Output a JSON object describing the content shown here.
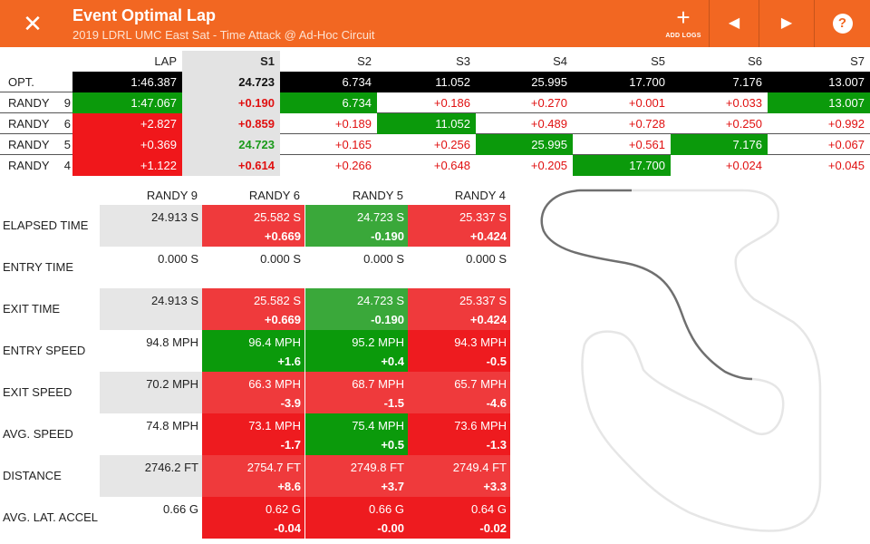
{
  "header": {
    "close_glyph": "✕",
    "title": "Event Optimal Lap",
    "subtitle": "2019 LDRL UMC East Sat - Time Attack @ Ad-Hoc Circuit",
    "add_logs_label": "ADD LOGS",
    "add_glyph": "+",
    "prev_glyph": "◀",
    "next_glyph": "▶",
    "help_glyph": "?",
    "icons": [
      "close-icon",
      "plus-icon",
      "prev-icon",
      "next-icon",
      "help-icon"
    ],
    "accent_color": "#f26722"
  },
  "sectors": {
    "columns": [
      "LAP",
      "S1",
      "S2",
      "S3",
      "S4",
      "S5",
      "S6",
      "S7"
    ],
    "rows": [
      {
        "name": "OPT.",
        "num": "",
        "values": [
          "1:46.387",
          "24.723",
          "6.734",
          "11.052",
          "25.995",
          "17.700",
          "7.176",
          "13.007"
        ]
      },
      {
        "name": "RANDY",
        "num": "9",
        "values": [
          "1:47.067",
          "+0.190",
          "6.734",
          "+0.186",
          "+0.270",
          "+0.001",
          "+0.033",
          "13.007"
        ]
      },
      {
        "name": "RANDY",
        "num": "6",
        "values": [
          "+2.827",
          "+0.859",
          "+0.189",
          "11.052",
          "+0.489",
          "+0.728",
          "+0.250",
          "+0.992"
        ]
      },
      {
        "name": "RANDY",
        "num": "5",
        "values": [
          "+0.369",
          "24.723",
          "+0.165",
          "+0.256",
          "25.995",
          "+0.561",
          "7.176",
          "+0.067"
        ]
      },
      {
        "name": "RANDY",
        "num": "4",
        "values": [
          "+1.122",
          "+0.614",
          "+0.266",
          "+0.648",
          "+0.205",
          "17.700",
          "+0.024",
          "+0.045"
        ]
      }
    ]
  },
  "comparison": {
    "drivers": [
      "RANDY 9",
      "RANDY 6",
      "RANDY 5",
      "RANDY 4"
    ],
    "rows": [
      {
        "label": "ELAPSED TIME",
        "cells": [
          {
            "value": "24.913 S",
            "delta": ""
          },
          {
            "value": "25.582 S",
            "delta": "+0.669"
          },
          {
            "value": "24.723 S",
            "delta": "-0.190"
          },
          {
            "value": "25.337 S",
            "delta": "+0.424"
          }
        ]
      },
      {
        "label": "ENTRY TIME",
        "cells": [
          {
            "value": "0.000 S",
            "delta": ""
          },
          {
            "value": "0.000 S",
            "delta": ""
          },
          {
            "value": "0.000 S",
            "delta": ""
          },
          {
            "value": "0.000 S",
            "delta": ""
          }
        ]
      },
      {
        "label": "EXIT TIME",
        "cells": [
          {
            "value": "24.913 S",
            "delta": ""
          },
          {
            "value": "25.582 S",
            "delta": "+0.669"
          },
          {
            "value": "24.723 S",
            "delta": "-0.190"
          },
          {
            "value": "25.337 S",
            "delta": "+0.424"
          }
        ]
      },
      {
        "label": "ENTRY SPEED",
        "cells": [
          {
            "value": "94.8 MPH",
            "delta": ""
          },
          {
            "value": "96.4 MPH",
            "delta": "+1.6"
          },
          {
            "value": "95.2 MPH",
            "delta": "+0.4"
          },
          {
            "value": "94.3 MPH",
            "delta": "-0.5"
          }
        ]
      },
      {
        "label": "EXIT SPEED",
        "cells": [
          {
            "value": "70.2 MPH",
            "delta": ""
          },
          {
            "value": "66.3 MPH",
            "delta": "-3.9"
          },
          {
            "value": "68.7 MPH",
            "delta": "-1.5"
          },
          {
            "value": "65.7 MPH",
            "delta": "-4.6"
          }
        ]
      },
      {
        "label": "AVG. SPEED",
        "cells": [
          {
            "value": "74.8 MPH",
            "delta": ""
          },
          {
            "value": "73.1 MPH",
            "delta": "-1.7"
          },
          {
            "value": "75.4 MPH",
            "delta": "+0.5"
          },
          {
            "value": "73.6 MPH",
            "delta": "-1.3"
          }
        ]
      },
      {
        "label": "DISTANCE",
        "cells": [
          {
            "value": "2746.2 FT",
            "delta": ""
          },
          {
            "value": "2754.7 FT",
            "delta": "+8.6"
          },
          {
            "value": "2749.8 FT",
            "delta": "+3.7"
          },
          {
            "value": "2749.4 FT",
            "delta": "+3.3"
          }
        ]
      },
      {
        "label": "AVG. LAT. ACCEL",
        "cells": [
          {
            "value": "0.66 G",
            "delta": ""
          },
          {
            "value": "0.62 G",
            "delta": "-0.04"
          },
          {
            "value": "0.66 G",
            "delta": "-0.00"
          },
          {
            "value": "0.64 G",
            "delta": "-0.02"
          }
        ]
      }
    ]
  }
}
